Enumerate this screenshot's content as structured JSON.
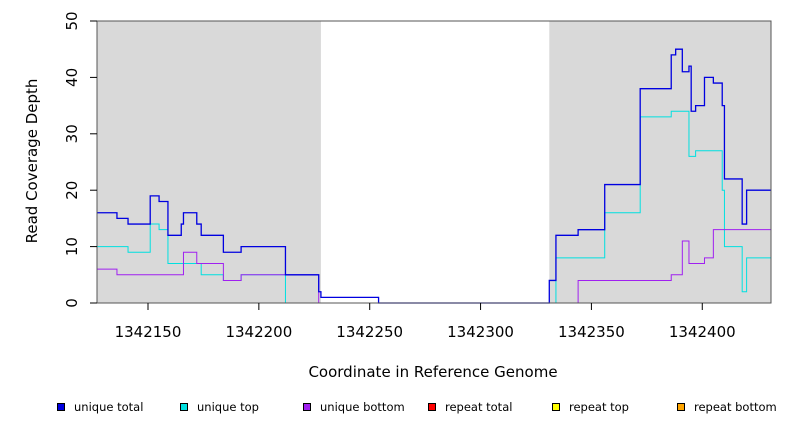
{
  "chart_data": {
    "type": "line",
    "title": "",
    "xlabel": "Coordinate in Reference Genome",
    "ylabel": "Read Coverage Depth",
    "xlim": [
      1342127,
      1342431
    ],
    "ylim": [
      0,
      50
    ],
    "x_ticks": [
      1342150,
      1342200,
      1342250,
      1342300,
      1342350,
      1342400
    ],
    "x_tick_labels": [
      "1342150",
      "1342200",
      "1342250",
      "1342300",
      "1342350",
      "1342400"
    ],
    "y_ticks": [
      0,
      10,
      20,
      30,
      40,
      50
    ],
    "y_tick_labels": [
      "0",
      "10",
      "20",
      "30",
      "40",
      "50"
    ],
    "shaded_regions": [
      [
        1342127,
        1342228
      ],
      [
        1342331,
        1342431
      ]
    ],
    "shaded_color": "#d9d9d9",
    "step": true,
    "legend_position": "bottom",
    "series": [
      {
        "name": "unique total",
        "color": "#0000e0",
        "x": [
          1342127,
          1342136,
          1342141,
          1342151,
          1342155,
          1342159,
          1342165,
          1342166,
          1342172,
          1342174,
          1342184,
          1342192,
          1342212,
          1342227,
          1342228,
          1342254,
          1342331,
          1342334,
          1342344,
          1342356,
          1342372,
          1342386,
          1342388,
          1342391,
          1342394,
          1342395,
          1342397,
          1342401,
          1342405,
          1342409,
          1342410,
          1342418,
          1342420,
          1342431
        ],
        "y": [
          16,
          15,
          14,
          19,
          18,
          12,
          14,
          16,
          14,
          12,
          9,
          10,
          5,
          2,
          1,
          0,
          4,
          12,
          13,
          21,
          38,
          44,
          45,
          41,
          42,
          34,
          35,
          40,
          39,
          35,
          22,
          14,
          20,
          20
        ]
      },
      {
        "name": "unique top",
        "color": "#00e0e0",
        "x": [
          1342127,
          1342141,
          1342151,
          1342155,
          1342159,
          1342166,
          1342174,
          1342184,
          1342192,
          1342212,
          1342227,
          1342228,
          1342331,
          1342334,
          1342356,
          1342372,
          1342386,
          1342394,
          1342397,
          1342409,
          1342410,
          1342418,
          1342420,
          1342431
        ],
        "y": [
          10,
          9,
          14,
          13,
          7,
          7,
          5,
          4,
          5,
          0,
          0,
          0,
          0,
          8,
          16,
          33,
          34,
          26,
          27,
          20,
          10,
          2,
          8,
          8
        ]
      },
      {
        "name": "unique bottom",
        "color": "#a020f0",
        "x": [
          1342127,
          1342136,
          1342165,
          1342166,
          1342172,
          1342184,
          1342192,
          1342212,
          1342227,
          1342228,
          1342331,
          1342344,
          1342386,
          1342391,
          1342394,
          1342401,
          1342405,
          1342431
        ],
        "y": [
          6,
          5,
          5,
          9,
          7,
          4,
          5,
          5,
          0,
          0,
          0,
          4,
          5,
          11,
          7,
          8,
          13,
          12
        ]
      },
      {
        "name": "repeat total",
        "color": "#ff0000",
        "x": [
          1342127,
          1342431
        ],
        "y": [
          0,
          0
        ]
      },
      {
        "name": "repeat top",
        "color": "#ffff00",
        "x": [
          1342127,
          1342431
        ],
        "y": [
          0,
          0
        ]
      },
      {
        "name": "repeat bottom",
        "color": "#ffa500",
        "x": [
          1342127,
          1342431
        ],
        "y": [
          0,
          0
        ]
      }
    ]
  }
}
